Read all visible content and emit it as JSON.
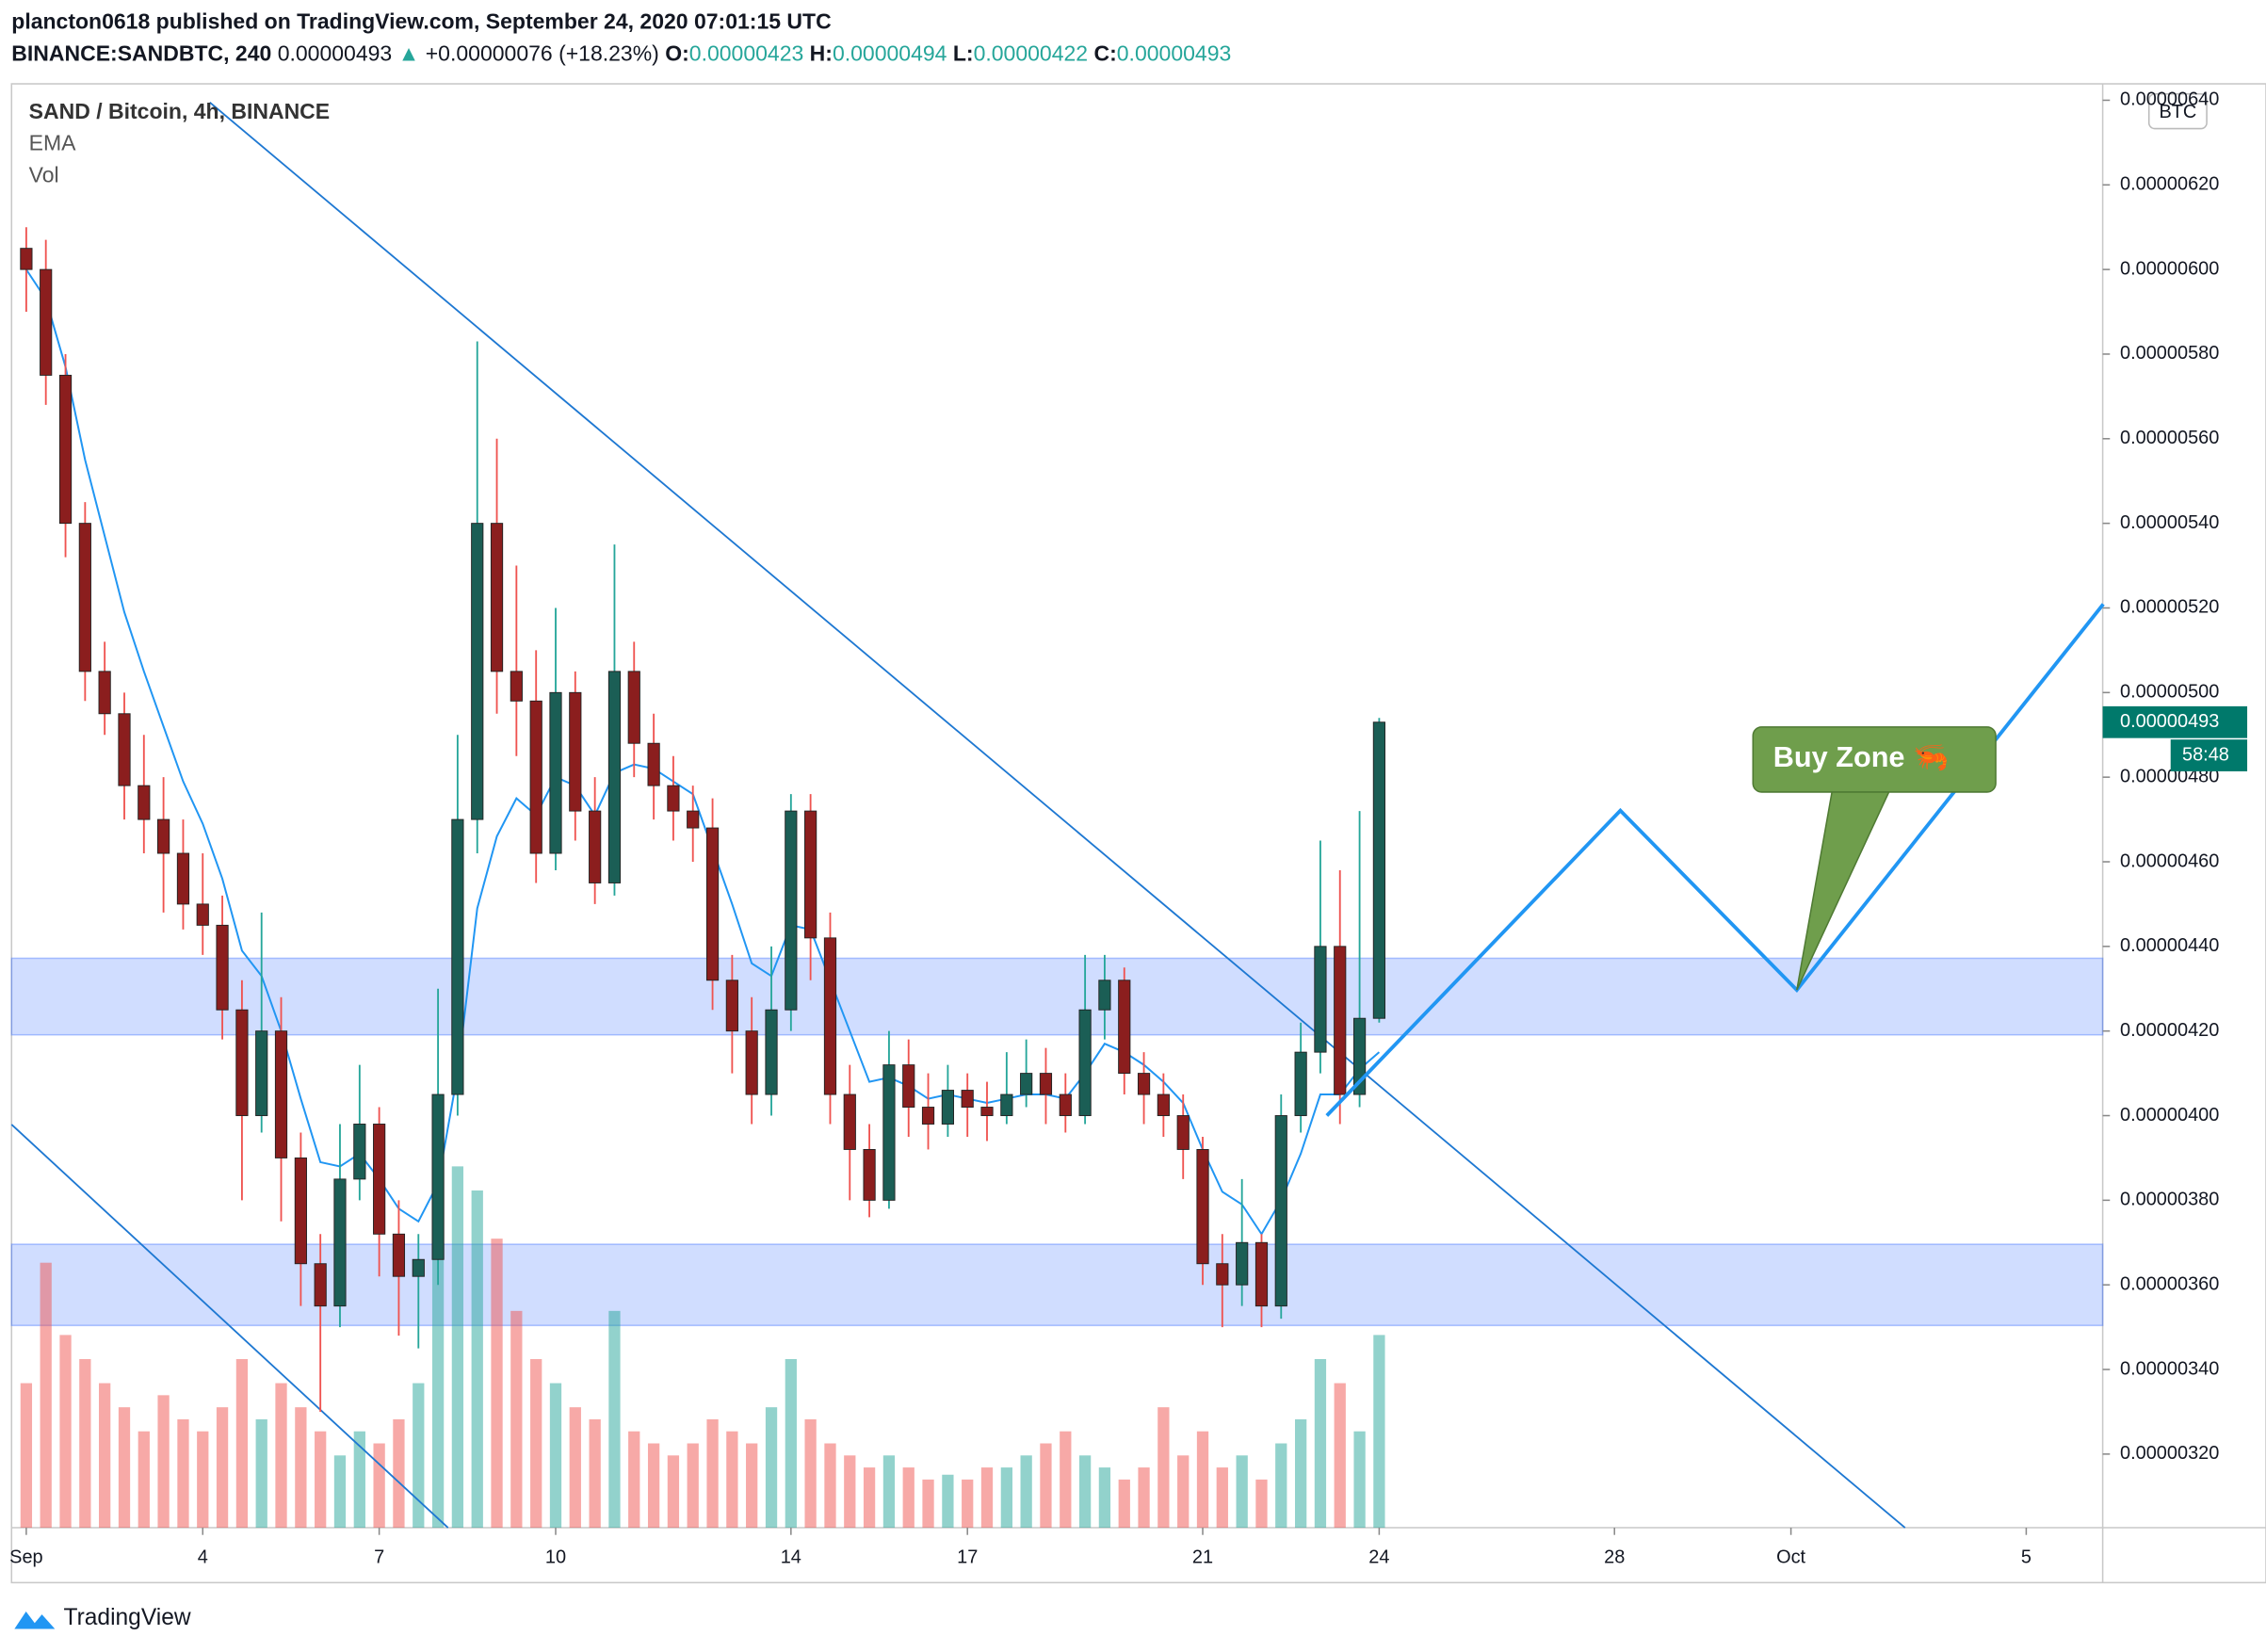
{
  "chart_data": {
    "type": "candlestick",
    "header": {
      "author_line": "plancton0618 published on TradingView.com, September 24, 2020 07:01:15 UTC",
      "symbol": "BINANCE:SANDBTC, 240",
      "price": "0.00000493",
      "arrow": "▲",
      "change": "+0.00000076 (+18.23%)",
      "ohlc": [
        {
          "key": "O:",
          "value": "0.00000423"
        },
        {
          "key": "H:",
          "value": "0.00000494"
        },
        {
          "key": "L:",
          "value": "0.00000422"
        },
        {
          "key": "C:",
          "value": "0.00000493"
        }
      ]
    },
    "legend": [
      "SAND / Bitcoin, 4h, BINANCE",
      "EMA",
      "Vol"
    ],
    "currency": "BTC",
    "footer": "TradingView",
    "up_color": "#26a69a",
    "down_color": "#ef5350",
    "ema_color": "#2196f3",
    "line_color": "#1e78d2",
    "zone_color": "#2962ff",
    "x": [
      1,
      1.333,
      1.667,
      2,
      2.333,
      2.667,
      3,
      3.333,
      3.667,
      4,
      4.333,
      4.667,
      5,
      5.333,
      5.667,
      6,
      6.333,
      6.667,
      7,
      7.333,
      7.667,
      8,
      8.333,
      8.667,
      9,
      9.333,
      9.667,
      10,
      10.333,
      10.667,
      11,
      11.333,
      11.667,
      12,
      12.333,
      12.667,
      13,
      13.333,
      13.667,
      14,
      14.333,
      14.667,
      15,
      15.333,
      15.667,
      16,
      16.333,
      16.667,
      17,
      17.333,
      17.667,
      18,
      18.333,
      18.667,
      19,
      19.333,
      19.667,
      20,
      20.333,
      20.667,
      21,
      21.333,
      21.667,
      22,
      22.333,
      22.667,
      23,
      23.333,
      23.667,
      24
    ],
    "open": [
      6.05e-06,
      6e-06,
      5.75e-06,
      5.4e-06,
      5.05e-06,
      4.95e-06,
      4.78e-06,
      4.7e-06,
      4.62e-06,
      4.5e-06,
      4.45e-06,
      4.25e-06,
      4e-06,
      4.2e-06,
      3.9e-06,
      3.65e-06,
      3.55e-06,
      3.85e-06,
      3.98e-06,
      3.72e-06,
      3.62e-06,
      3.66e-06,
      4.05e-06,
      4.7e-06,
      5.4e-06,
      5.05e-06,
      4.98e-06,
      4.62e-06,
      5e-06,
      4.72e-06,
      4.55e-06,
      5.05e-06,
      4.88e-06,
      4.78e-06,
      4.72e-06,
      4.68e-06,
      4.32e-06,
      4.2e-06,
      4.05e-06,
      4.25e-06,
      4.72e-06,
      4.42e-06,
      4.05e-06,
      3.92e-06,
      3.8e-06,
      4.12e-06,
      4.02e-06,
      3.98e-06,
      4.06e-06,
      4.02e-06,
      4e-06,
      4.05e-06,
      4.1e-06,
      4.05e-06,
      4e-06,
      4.25e-06,
      4.32e-06,
      4.1e-06,
      4.05e-06,
      4e-06,
      3.92e-06,
      3.65e-06,
      3.6e-06,
      3.7e-06,
      3.55e-06,
      4e-06,
      4.15e-06,
      4.4e-06,
      4.05e-06,
      4.23e-06
    ],
    "high": [
      6.1e-06,
      6.07e-06,
      5.8e-06,
      5.45e-06,
      5.12e-06,
      5e-06,
      4.9e-06,
      4.8e-06,
      4.7e-06,
      4.62e-06,
      4.52e-06,
      4.32e-06,
      4.48e-06,
      4.28e-06,
      3.96e-06,
      3.72e-06,
      3.98e-06,
      4.12e-06,
      4.02e-06,
      3.8e-06,
      3.72e-06,
      4.3e-06,
      4.9e-06,
      5.83e-06,
      5.6e-06,
      5.3e-06,
      5.1e-06,
      5.2e-06,
      5.05e-06,
      4.8e-06,
      5.35e-06,
      5.12e-06,
      4.95e-06,
      4.85e-06,
      4.78e-06,
      4.75e-06,
      4.38e-06,
      4.28e-06,
      4.4e-06,
      4.76e-06,
      4.76e-06,
      4.48e-06,
      4.12e-06,
      3.98e-06,
      4.2e-06,
      4.18e-06,
      4.1e-06,
      4.12e-06,
      4.1e-06,
      4.08e-06,
      4.15e-06,
      4.18e-06,
      4.16e-06,
      4.1e-06,
      4.38e-06,
      4.38e-06,
      4.35e-06,
      4.15e-06,
      4.1e-06,
      4.05e-06,
      3.95e-06,
      3.72e-06,
      3.85e-06,
      3.72e-06,
      4.05e-06,
      4.22e-06,
      4.65e-06,
      4.58e-06,
      4.72e-06,
      4.94e-06
    ],
    "low": [
      5.9e-06,
      5.68e-06,
      5.32e-06,
      4.98e-06,
      4.9e-06,
      4.7e-06,
      4.62e-06,
      4.48e-06,
      4.44e-06,
      4.38e-06,
      4.18e-06,
      3.8e-06,
      3.96e-06,
      3.75e-06,
      3.55e-06,
      3.3e-06,
      3.5e-06,
      3.8e-06,
      3.62e-06,
      3.48e-06,
      3.45e-06,
      3.6e-06,
      4e-06,
      4.62e-06,
      4.95e-06,
      4.85e-06,
      4.55e-06,
      4.58e-06,
      4.65e-06,
      4.5e-06,
      4.52e-06,
      4.8e-06,
      4.7e-06,
      4.65e-06,
      4.6e-06,
      4.25e-06,
      4.1e-06,
      3.98e-06,
      4e-06,
      4.2e-06,
      4.32e-06,
      3.98e-06,
      3.8e-06,
      3.76e-06,
      3.78e-06,
      3.95e-06,
      3.92e-06,
      3.95e-06,
      3.95e-06,
      3.94e-06,
      3.98e-06,
      4.02e-06,
      3.98e-06,
      3.96e-06,
      3.98e-06,
      4.18e-06,
      4.05e-06,
      3.98e-06,
      3.95e-06,
      3.85e-06,
      3.6e-06,
      3.5e-06,
      3.55e-06,
      3.5e-06,
      3.52e-06,
      3.96e-06,
      4.1e-06,
      3.98e-06,
      4.02e-06,
      4.22e-06
    ],
    "close": [
      6e-06,
      5.75e-06,
      5.4e-06,
      5.05e-06,
      4.95e-06,
      4.78e-06,
      4.7e-06,
      4.62e-06,
      4.5e-06,
      4.45e-06,
      4.25e-06,
      4e-06,
      4.2e-06,
      3.9e-06,
      3.65e-06,
      3.55e-06,
      3.85e-06,
      3.98e-06,
      3.72e-06,
      3.62e-06,
      3.66e-06,
      4.05e-06,
      4.7e-06,
      5.4e-06,
      5.05e-06,
      4.98e-06,
      4.62e-06,
      5e-06,
      4.72e-06,
      4.55e-06,
      5.05e-06,
      4.88e-06,
      4.78e-06,
      4.72e-06,
      4.68e-06,
      4.32e-06,
      4.2e-06,
      4.05e-06,
      4.25e-06,
      4.72e-06,
      4.42e-06,
      4.05e-06,
      3.92e-06,
      3.8e-06,
      4.12e-06,
      4.02e-06,
      3.98e-06,
      4.06e-06,
      4.02e-06,
      4e-06,
      4.05e-06,
      4.1e-06,
      4.05e-06,
      4e-06,
      4.25e-06,
      4.32e-06,
      4.1e-06,
      4.05e-06,
      4e-06,
      3.92e-06,
      3.65e-06,
      3.6e-06,
      3.7e-06,
      3.55e-06,
      4e-06,
      4.15e-06,
      4.4e-06,
      4.05e-06,
      4.23e-06,
      4.93e-06
    ],
    "ema": [
      6e-06,
      5.93e-06,
      5.77e-06,
      5.55e-06,
      5.37e-06,
      5.19e-06,
      5.05e-06,
      4.92e-06,
      4.79e-06,
      4.69e-06,
      4.56e-06,
      4.39e-06,
      4.33e-06,
      4.2e-06,
      4.04e-06,
      3.89e-06,
      3.88e-06,
      3.91e-06,
      3.85e-06,
      3.78e-06,
      3.75e-06,
      3.84e-06,
      4.1e-06,
      4.49e-06,
      4.66e-06,
      4.75e-06,
      4.71e-06,
      4.8e-06,
      4.78e-06,
      4.71e-06,
      4.81e-06,
      4.83e-06,
      4.82e-06,
      4.79e-06,
      4.76e-06,
      4.63e-06,
      4.5e-06,
      4.36e-06,
      4.33e-06,
      4.45e-06,
      4.44e-06,
      4.32e-06,
      4.2e-06,
      4.08e-06,
      4.09e-06,
      4.07e-06,
      4.04e-06,
      4.05e-06,
      4.04e-06,
      4.03e-06,
      4.04e-06,
      4.05e-06,
      4.05e-06,
      4.04e-06,
      4.1e-06,
      4.17e-06,
      4.15e-06,
      4.12e-06,
      4.08e-06,
      4.03e-06,
      3.92e-06,
      3.82e-06,
      3.79e-06,
      3.72e-06,
      3.8e-06,
      3.91e-06,
      4.05e-06,
      4.05e-06,
      4.11e-06,
      4.15e-06
    ],
    "volume": [
      60,
      110,
      80,
      70,
      60,
      50,
      40,
      55,
      45,
      40,
      50,
      70,
      45,
      60,
      50,
      40,
      30,
      40,
      35,
      45,
      60,
      130,
      150,
      140,
      120,
      90,
      70,
      60,
      50,
      45,
      90,
      40,
      35,
      30,
      35,
      45,
      40,
      35,
      50,
      70,
      45,
      35,
      30,
      25,
      30,
      25,
      20,
      22,
      20,
      25,
      25,
      30,
      35,
      40,
      30,
      25,
      20,
      25,
      50,
      30,
      40,
      25,
      30,
      20,
      35,
      45,
      70,
      60,
      40,
      80
    ],
    "xlim": [
      0.75,
      36.3
    ],
    "xticks": [
      {
        "value": 1,
        "label": "Sep"
      },
      4,
      7,
      10,
      14,
      17,
      21,
      24,
      28,
      {
        "value": 31,
        "label": "Oct"
      },
      5
    ],
    "ylim": [
      3.026e-06,
      6.432e-06
    ],
    "yticks": [
      {
        "value": 3.2e-06,
        "label": "0.00000320"
      },
      {
        "value": 3.4e-06,
        "label": "0.00000340"
      },
      {
        "value": 3.6e-06,
        "label": "0.00000360"
      },
      {
        "value": 3.8e-06,
        "label": "0.00000380"
      },
      {
        "value": 4e-06,
        "label": "0.00000400"
      },
      {
        "value": 4.2e-06,
        "label": "0.00000420"
      },
      {
        "value": 4.4e-06,
        "label": "0.00000440"
      },
      {
        "value": 4.6e-06,
        "label": "0.00000460"
      },
      {
        "value": 4.8e-06,
        "label": "0.00000480"
      },
      {
        "value": 5e-06,
        "label": "0.00000500"
      },
      {
        "value": 5.2e-06,
        "label": "0.00000520"
      },
      {
        "value": 5.4e-06,
        "label": "0.00000540"
      },
      {
        "value": 5.6e-06,
        "label": "0.00000560"
      },
      {
        "value": 5.8e-06,
        "label": "0.00000580"
      },
      {
        "value": 6e-06,
        "label": "0.00000600"
      },
      {
        "value": 6.2e-06,
        "label": "0.00000620"
      },
      {
        "value": 6.4e-06,
        "label": "0.00000640"
      }
    ],
    "zones": [
      [
        4.191e-06,
        4.372e-06
      ],
      [
        3.504e-06,
        3.696e-06
      ]
    ],
    "trend_lines": [
      [
        [
          4.12,
          6.395e-06
        ],
        [
          32.94,
          3.026e-06
        ]
      ],
      [
        [
          0.75,
          3.979e-06
        ],
        [
          8.17,
          3.026e-06
        ]
      ]
    ],
    "projection": [
      [
        23.11,
        4e-06
      ],
      [
        28.1,
        4.721e-06
      ],
      [
        31.1,
        4.297e-06
      ],
      [
        36.31,
        5.209e-06
      ]
    ],
    "callout": {
      "text": "Buy Zone 🦐",
      "x": 31.1,
      "y": 4.297e-06,
      "color": "#6f9e4c"
    },
    "last_price": {
      "value": 4.93e-06,
      "label": "0.00000493"
    },
    "countdown": "58:48"
  }
}
